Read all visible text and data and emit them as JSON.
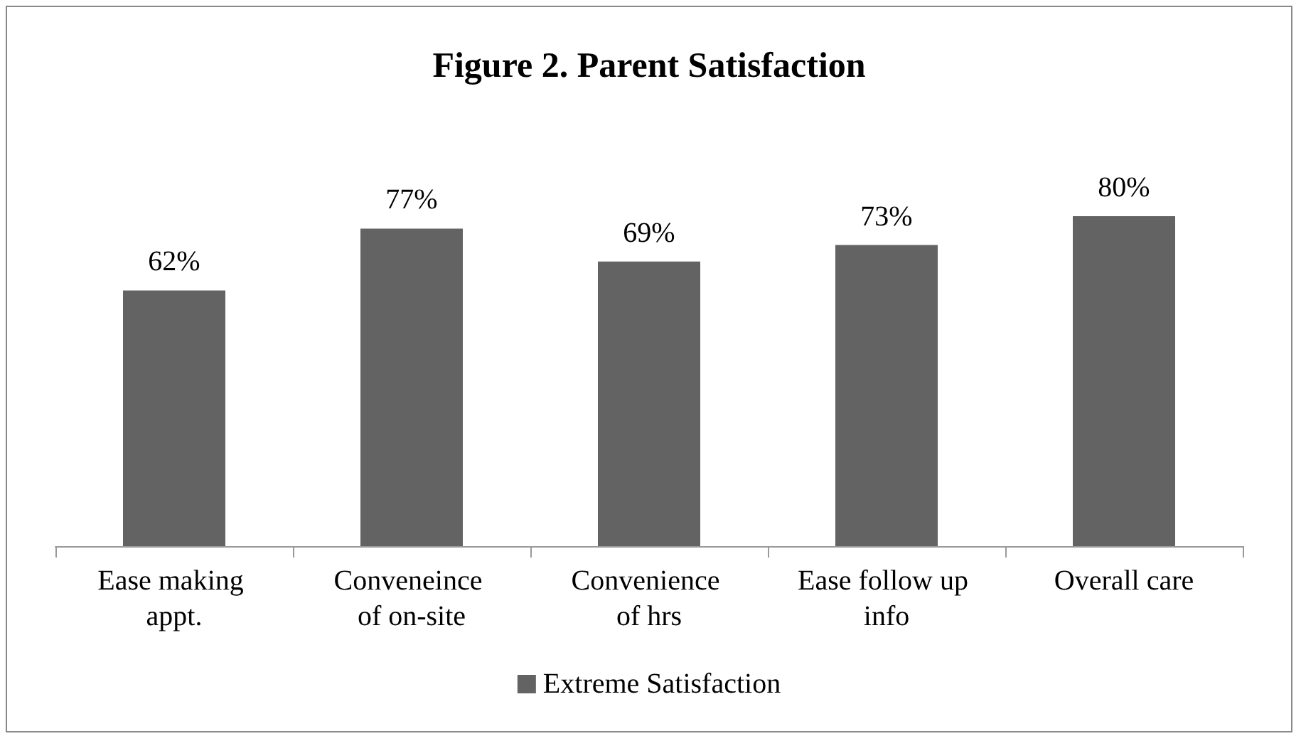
{
  "chart_data": {
    "type": "bar",
    "title": "Figure 2. Parent Satisfaction",
    "categories": [
      "Ease making appt.",
      "Conveneince of on-site",
      "Convenience of hrs",
      "Ease follow up info",
      "Overall care"
    ],
    "series": [
      {
        "name": "Extreme Satisfaction",
        "color": "#636363",
        "values": [
          62,
          77,
          69,
          73,
          80
        ],
        "value_labels": [
          "62%",
          "77%",
          "69%",
          "73%",
          "80%"
        ]
      }
    ],
    "legend": "bottom"
  }
}
